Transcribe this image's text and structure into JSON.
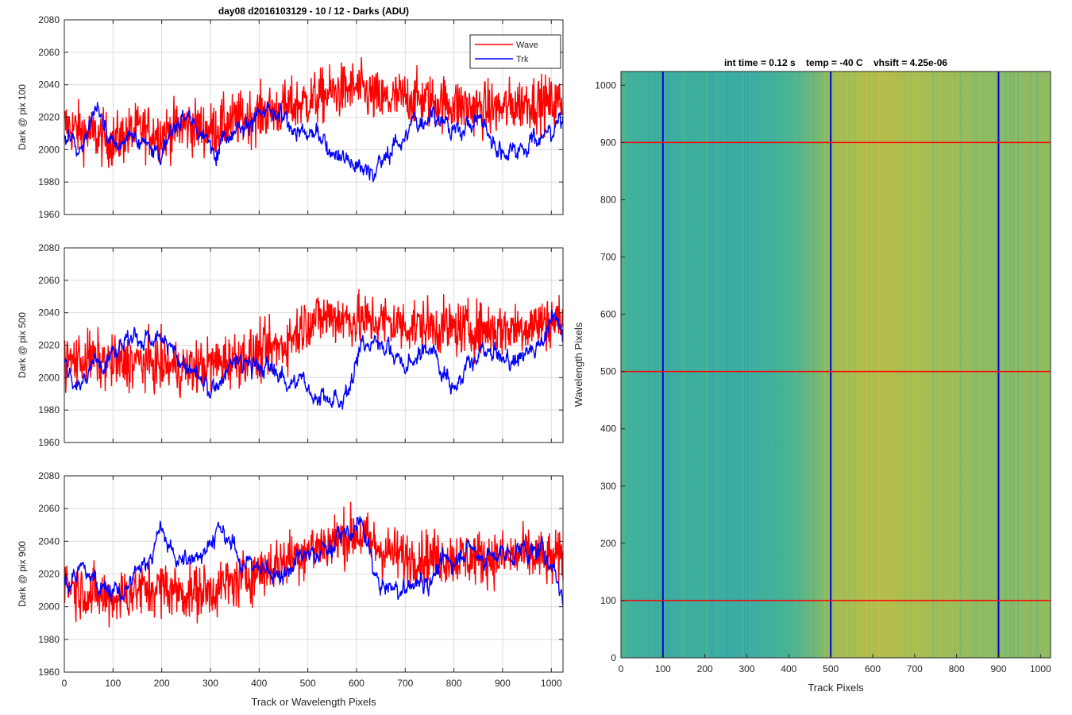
{
  "chart_data": [
    {
      "type": "line",
      "title": "day08 d2016103129 - 10 / 12 - Darks (ADU)",
      "xlabel": "",
      "ylabel": "Dark @ pix 100",
      "xlim": [
        0,
        1024
      ],
      "ylim": [
        1960,
        2080
      ],
      "xticks": [
        0,
        100,
        200,
        300,
        400,
        500,
        600,
        700,
        800,
        900,
        1000
      ],
      "yticks": [
        1960,
        1980,
        2000,
        2020,
        2040,
        2060,
        2080
      ],
      "grid": true,
      "legend": "top-right",
      "series": [
        {
          "name": "Wave",
          "color": "#ff0000",
          "x": [
            0,
            50,
            100,
            150,
            200,
            250,
            300,
            350,
            400,
            450,
            500,
            550,
            600,
            650,
            700,
            750,
            800,
            850,
            900,
            950,
            1000,
            1024
          ],
          "values": [
            2015,
            2010,
            2005,
            2012,
            2010,
            2015,
            2012,
            2018,
            2022,
            2025,
            2030,
            2035,
            2038,
            2030,
            2032,
            2030,
            2028,
            2025,
            2025,
            2030,
            2028,
            2030
          ]
        },
        {
          "name": "Trk",
          "color": "#0000ff",
          "x": [
            0,
            30,
            70,
            100,
            140,
            200,
            250,
            300,
            350,
            420,
            500,
            560,
            630,
            700,
            760,
            800,
            850,
            900,
            950,
            1000,
            1024
          ],
          "values": [
            2010,
            2000,
            2025,
            1998,
            2010,
            2000,
            2022,
            2000,
            2015,
            2022,
            2010,
            2000,
            1985,
            2010,
            2025,
            2010,
            2020,
            1998,
            2005,
            2010,
            2025
          ]
        }
      ]
    },
    {
      "type": "line",
      "title": "",
      "xlabel": "",
      "ylabel": "Dark @ pix 500",
      "xlim": [
        0,
        1024
      ],
      "ylim": [
        1960,
        2080
      ],
      "xticks": [
        0,
        100,
        200,
        300,
        400,
        500,
        600,
        700,
        800,
        900,
        1000
      ],
      "yticks": [
        1960,
        1980,
        2000,
        2020,
        2040,
        2060,
        2080
      ],
      "grid": true,
      "series": [
        {
          "name": "Wave",
          "color": "#ff0000",
          "x": [
            0,
            50,
            100,
            150,
            200,
            250,
            300,
            350,
            400,
            450,
            500,
            550,
            600,
            650,
            700,
            750,
            800,
            850,
            900,
            950,
            1000,
            1024
          ],
          "values": [
            2010,
            2012,
            2008,
            2010,
            2008,
            2005,
            2008,
            2012,
            2015,
            2020,
            2035,
            2038,
            2035,
            2035,
            2032,
            2032,
            2030,
            2030,
            2030,
            2032,
            2035,
            2035
          ]
        },
        {
          "name": "Trk",
          "color": "#0000ff",
          "x": [
            0,
            30,
            80,
            130,
            200,
            260,
            300,
            350,
            420,
            460,
            520,
            570,
            600,
            650,
            700,
            750,
            800,
            860,
            920,
            970,
            1000,
            1024
          ],
          "values": [
            2010,
            1995,
            2015,
            2025,
            2022,
            2005,
            1990,
            2010,
            2005,
            2000,
            1990,
            1980,
            2015,
            2025,
            2005,
            2020,
            1995,
            2015,
            2010,
            2020,
            2035,
            2030
          ]
        }
      ]
    },
    {
      "type": "line",
      "title": "",
      "xlabel": "Track or Wavelength Pixels",
      "ylabel": "Dark @ pix 900",
      "xlim": [
        0,
        1024
      ],
      "ylim": [
        1960,
        2080
      ],
      "xticks": [
        0,
        100,
        200,
        300,
        400,
        500,
        600,
        700,
        800,
        900,
        1000
      ],
      "yticks": [
        1960,
        1980,
        2000,
        2020,
        2040,
        2060,
        2080
      ],
      "grid": true,
      "series": [
        {
          "name": "Wave",
          "color": "#ff0000",
          "x": [
            0,
            50,
            100,
            150,
            200,
            250,
            300,
            350,
            400,
            450,
            500,
            550,
            600,
            650,
            700,
            750,
            800,
            850,
            900,
            950,
            1000,
            1024
          ],
          "values": [
            2015,
            2008,
            2005,
            2010,
            2012,
            2008,
            2010,
            2015,
            2022,
            2028,
            2035,
            2040,
            2045,
            2035,
            2030,
            2030,
            2030,
            2030,
            2030,
            2032,
            2028,
            2030
          ]
        },
        {
          "name": "Trk",
          "color": "#0000ff",
          "x": [
            0,
            40,
            80,
            120,
            160,
            200,
            240,
            280,
            320,
            380,
            440,
            500,
            560,
            610,
            650,
            700,
            760,
            820,
            880,
            940,
            1000,
            1024
          ],
          "values": [
            2015,
            2020,
            2015,
            2005,
            2025,
            2045,
            2025,
            2035,
            2045,
            2025,
            2020,
            2030,
            2040,
            2050,
            2010,
            2010,
            2020,
            2035,
            2030,
            2035,
            2030,
            2005
          ]
        }
      ]
    },
    {
      "type": "heatmap",
      "title": "int time = 0.12 s    temp = -40 C    vhsift = 4.25e-06",
      "xlabel": "Track Pixels",
      "ylabel": "Wavelength Pixels",
      "xlim": [
        0,
        1024
      ],
      "ylim": [
        0,
        1024
      ],
      "xticks": [
        0,
        100,
        200,
        300,
        400,
        500,
        600,
        700,
        800,
        900,
        1000
      ],
      "yticks": [
        0,
        100,
        200,
        300,
        400,
        500,
        600,
        700,
        800,
        900,
        1000
      ],
      "column_profile": [
        {
          "x": 0,
          "level": 0.35
        },
        {
          "x": 100,
          "level": 0.25
        },
        {
          "x": 200,
          "level": 0.28
        },
        {
          "x": 300,
          "level": 0.25
        },
        {
          "x": 400,
          "level": 0.35
        },
        {
          "x": 450,
          "level": 0.45
        },
        {
          "x": 500,
          "level": 0.6
        },
        {
          "x": 600,
          "level": 0.72
        },
        {
          "x": 700,
          "level": 0.65
        },
        {
          "x": 800,
          "level": 0.6
        },
        {
          "x": 900,
          "level": 0.55
        },
        {
          "x": 1024,
          "level": 0.58
        }
      ],
      "marker_lines": [
        {
          "orientation": "vertical",
          "value": 100,
          "color": "#0000cc"
        },
        {
          "orientation": "vertical",
          "value": 500,
          "color": "#0000cc"
        },
        {
          "orientation": "vertical",
          "value": 900,
          "color": "#0000cc"
        },
        {
          "orientation": "horizontal",
          "value": 100,
          "color": "#ff0000"
        },
        {
          "orientation": "horizontal",
          "value": 500,
          "color": "#ff0000"
        },
        {
          "orientation": "horizontal",
          "value": 900,
          "color": "#ff0000"
        }
      ]
    }
  ]
}
